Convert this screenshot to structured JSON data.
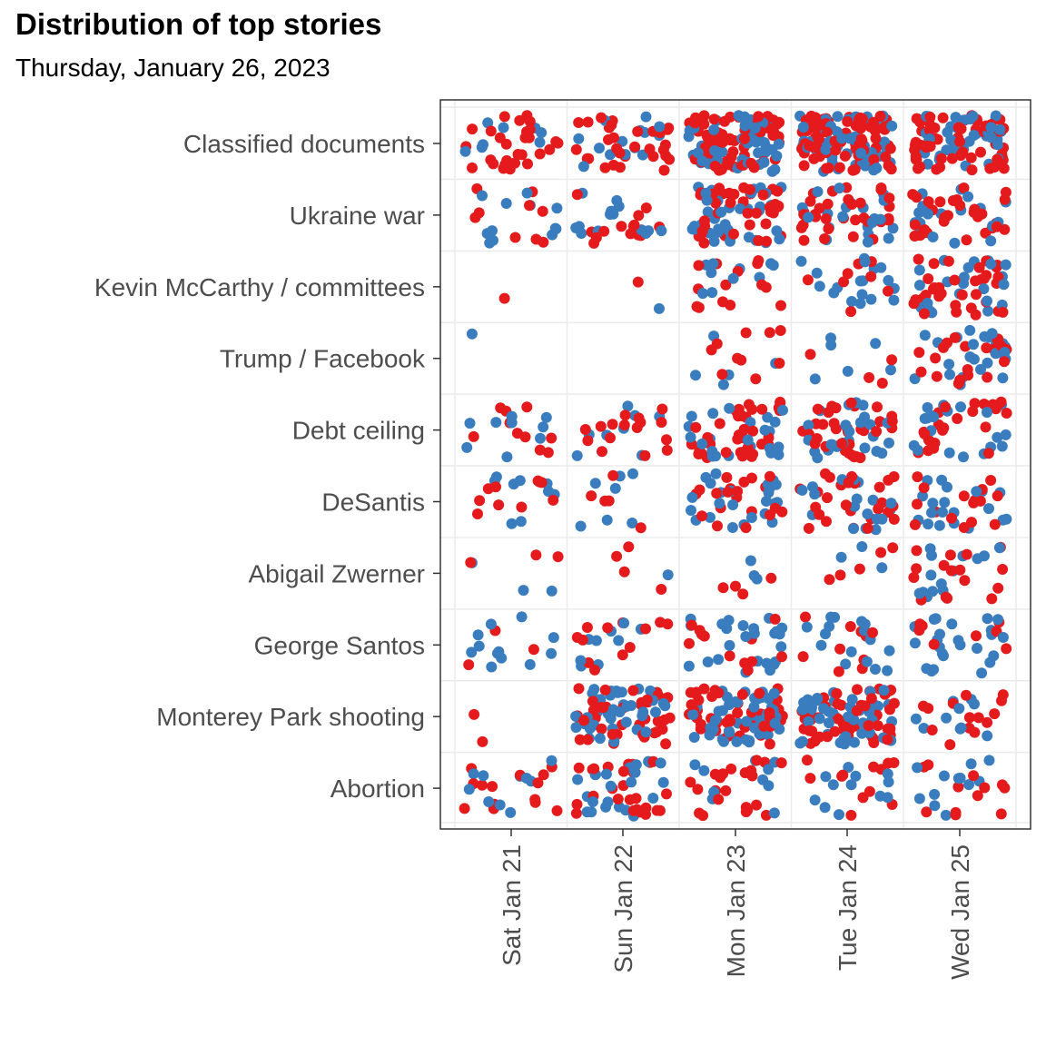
{
  "title": "Distribution of top stories",
  "subtitle": "Thursday, January 26, 2023",
  "colors": {
    "series_a": "#3a7dbf",
    "series_b": "#e41a1c",
    "panel_border": "#333333",
    "grid": "#ebebeb",
    "axis_text": "#4d4d4d"
  },
  "chart_data": {
    "type": "scatter",
    "style": "jittered strip plot",
    "grid": true,
    "legend": "none",
    "categories": [
      "Classified documents",
      "Ukraine war",
      "Kevin McCarthy / committees",
      "Trump / Facebook",
      "Debt ceiling",
      "DeSantis",
      "Abigail Zwerner",
      "George Santos",
      "Monterey Park shooting",
      "Abortion"
    ],
    "days": [
      "Sat Jan 21",
      "Sun Jan 22",
      "Mon Jan 23",
      "Tue Jan 24",
      "Wed Jan 25"
    ],
    "counts": [
      [
        [
          9,
          28
        ],
        [
          14,
          32
        ],
        [
          45,
          65
        ],
        [
          52,
          78
        ],
        [
          38,
          62
        ]
      ],
      [
        [
          12,
          9
        ],
        [
          14,
          14
        ],
        [
          42,
          40
        ],
        [
          22,
          32
        ],
        [
          20,
          30
        ]
      ],
      [
        [
          0,
          1
        ],
        [
          1,
          1
        ],
        [
          10,
          14
        ],
        [
          18,
          8
        ],
        [
          22,
          34
        ]
      ],
      [
        [
          1,
          0
        ],
        [
          0,
          0
        ],
        [
          5,
          10
        ],
        [
          6,
          4
        ],
        [
          26,
          20
        ]
      ],
      [
        [
          9,
          10
        ],
        [
          8,
          16
        ],
        [
          26,
          36
        ],
        [
          25,
          34
        ],
        [
          20,
          24
        ]
      ],
      [
        [
          9,
          10
        ],
        [
          7,
          5
        ],
        [
          24,
          20
        ],
        [
          18,
          26
        ],
        [
          20,
          16
        ]
      ],
      [
        [
          3,
          3
        ],
        [
          1,
          4
        ],
        [
          3,
          4
        ],
        [
          3,
          5
        ],
        [
          14,
          16
        ]
      ],
      [
        [
          12,
          3
        ],
        [
          9,
          12
        ],
        [
          25,
          12
        ],
        [
          16,
          10
        ],
        [
          24,
          8
        ]
      ],
      [
        [
          0,
          2
        ],
        [
          38,
          40
        ],
        [
          50,
          45
        ],
        [
          48,
          52
        ],
        [
          10,
          14
        ]
      ],
      [
        [
          10,
          14
        ],
        [
          22,
          26
        ],
        [
          10,
          22
        ],
        [
          12,
          12
        ],
        [
          12,
          12
        ]
      ]
    ]
  }
}
